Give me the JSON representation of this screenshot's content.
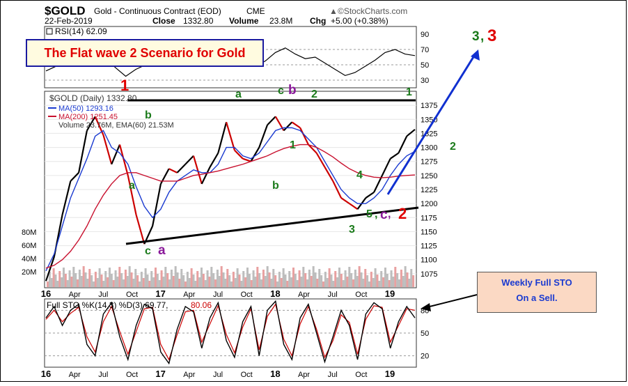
{
  "header": {
    "symbol": "$GOLD",
    "description": "Gold - Continuous Contract (EOD)",
    "exchange": "CME",
    "date": "22-Feb-2019",
    "close_label": "Close",
    "close_value": "1332.80",
    "volume_label": "Volume",
    "volume_value": "23.8M",
    "chg_label": "Chg",
    "chg_value": "+5.00 (+0.38%)",
    "watermark": "©StockCharts.com",
    "watermark_arrow": "▲"
  },
  "title_box": "The Flat wave 2 Scenario for Gold",
  "note_box": {
    "line1": "Weekly Full STO",
    "line2": "On a Sell."
  },
  "colors": {
    "up": "#000000",
    "down": "#cc0000",
    "ma50": "#1a3ad0",
    "ma200": "#c8102e",
    "wave_green": "#1a7a1a",
    "wave_red": "#e00000",
    "wave_purple": "#8a1a9a",
    "trend_blue": "#1030d0",
    "title_bg": "#fffbe0",
    "note_bg": "#fbd9c4"
  },
  "chart_data": [
    {
      "type": "line",
      "title": "RSI(14) 62.09",
      "legend_label": "RSI(14) 62.09",
      "ylim": [
        20,
        100
      ],
      "yticks": [
        "90",
        "70",
        "50",
        "30"
      ],
      "reference_lines": [
        70,
        50,
        30
      ],
      "series": [
        {
          "name": "RSI(14)",
          "values": [
            42,
            48,
            55,
            66,
            76,
            72,
            58,
            46,
            35,
            44,
            50,
            56,
            58,
            52,
            60,
            70,
            64,
            55,
            61,
            68,
            52,
            48,
            55,
            66,
            72,
            64,
            58,
            60,
            52,
            44,
            36,
            40,
            48,
            56,
            66,
            70,
            64,
            62
          ]
        }
      ]
    },
    {
      "type": "line",
      "title": "$GOLD (Daily) 1332.80",
      "legend": [
        "$GOLD (Daily) 1332.80",
        "MA(50) 1293.16",
        "MA(200) 1251.45",
        "Volume 23.76M, EMA(60) 21.53M"
      ],
      "ylim": [
        1050,
        1400
      ],
      "yticks": [
        "1375",
        "1350",
        "1325",
        "1300",
        "1275",
        "1250",
        "1225",
        "1200",
        "1175",
        "1150",
        "1125",
        "1100",
        "1075"
      ],
      "xticks": [
        "16",
        "Apr",
        "Jul",
        "Oct",
        "17",
        "Apr",
        "Jul",
        "Oct",
        "18",
        "Apr",
        "Jul",
        "Oct",
        "19"
      ],
      "volume_ticks": [
        "80M",
        "60M",
        "40M",
        "20M"
      ],
      "series": [
        {
          "name": "$GOLD",
          "values": [
            1062,
            1105,
            1180,
            1240,
            1255,
            1330,
            1355,
            1322,
            1270,
            1305,
            1250,
            1180,
            1128,
            1160,
            1235,
            1262,
            1255,
            1270,
            1285,
            1235,
            1265,
            1290,
            1345,
            1295,
            1280,
            1275,
            1300,
            1340,
            1355,
            1330,
            1345,
            1335,
            1305,
            1290,
            1265,
            1240,
            1210,
            1200,
            1190,
            1210,
            1220,
            1250,
            1280,
            1290,
            1320,
            1332
          ]
        },
        {
          "name": "MA(50)",
          "values": [
            1080,
            1110,
            1160,
            1210,
            1245,
            1280,
            1320,
            1330,
            1300,
            1290,
            1270,
            1230,
            1195,
            1175,
            1190,
            1220,
            1240,
            1250,
            1260,
            1255,
            1255,
            1270,
            1300,
            1300,
            1285,
            1280,
            1290,
            1310,
            1330,
            1335,
            1335,
            1330,
            1315,
            1300,
            1275,
            1250,
            1225,
            1210,
            1200,
            1200,
            1210,
            1225,
            1250,
            1270,
            1285,
            1293
          ]
        },
        {
          "name": "MA(200)",
          "values": [
            1085,
            1090,
            1100,
            1115,
            1135,
            1160,
            1190,
            1215,
            1235,
            1250,
            1255,
            1255,
            1250,
            1245,
            1240,
            1240,
            1240,
            1245,
            1250,
            1252,
            1255,
            1258,
            1262,
            1266,
            1270,
            1275,
            1280,
            1285,
            1292,
            1298,
            1302,
            1305,
            1305,
            1300,
            1292,
            1283,
            1272,
            1262,
            1255,
            1250,
            1247,
            1246,
            1247,
            1249,
            1250,
            1251
          ]
        }
      ],
      "wave_labels": [
        {
          "text": "1",
          "color": "red"
        },
        {
          "text": "b",
          "color": "green"
        },
        {
          "text": "a",
          "color": "green"
        },
        {
          "text": "c",
          "color": "green"
        },
        {
          "text": "a",
          "color": "purple"
        },
        {
          "text": "a",
          "color": "green"
        },
        {
          "text": "b",
          "color": "green"
        },
        {
          "text": "c",
          "color": "green"
        },
        {
          "text": "b",
          "color": "purple"
        },
        {
          "text": "2",
          "color": "green"
        },
        {
          "text": "1",
          "color": "green"
        },
        {
          "text": "4",
          "color": "green"
        },
        {
          "text": "3",
          "color": "green"
        },
        {
          "text": "5",
          "color": "green"
        },
        {
          "text": "c",
          "color": "purple"
        },
        {
          "text": "2",
          "color": "red"
        },
        {
          "text": "1",
          "color": "green"
        },
        {
          "text": "2",
          "color": "green"
        },
        {
          "text": "3",
          "color": "green"
        },
        {
          "text": "3",
          "color": "red"
        }
      ],
      "wave_separator": ",",
      "annotations": [
        "horizontal resistance line near 1375",
        "rising support line from ~1118 to ~1175",
        "blue projection arrow toward wave 3"
      ]
    },
    {
      "type": "line",
      "title": "Full STO %K(14,3) %D(3) 69.77, 80.06",
      "legend_label": "Full STO %K(14,3) %D(3) 69.77,",
      "legend_value": "80.06",
      "ylim": [
        5,
        95
      ],
      "yticks": [
        "80",
        "50",
        "20"
      ],
      "reference_lines": [
        80,
        50,
        20
      ],
      "xticks": [
        "16",
        "Apr",
        "Jul",
        "Oct",
        "17",
        "Apr",
        "Jul",
        "Oct",
        "18",
        "Apr",
        "Jul",
        "Oct",
        "19"
      ],
      "series": [
        {
          "name": "%K",
          "values": [
            70,
            85,
            60,
            80,
            88,
            35,
            20,
            75,
            90,
            45,
            15,
            60,
            88,
            82,
            25,
            10,
            55,
            85,
            78,
            30,
            70,
            90,
            40,
            18,
            65,
            85,
            20,
            80,
            92,
            35,
            15,
            70,
            88,
            50,
            12,
            45,
            80,
            60,
            15,
            75,
            90,
            82,
            30,
            65,
            85,
            70
          ]
        },
        {
          "name": "%D",
          "values": [
            68,
            80,
            65,
            76,
            84,
            45,
            25,
            65,
            85,
            52,
            22,
            52,
            82,
            84,
            35,
            15,
            48,
            78,
            80,
            38,
            62,
            86,
            48,
            24,
            58,
            82,
            28,
            72,
            88,
            42,
            20,
            62,
            85,
            55,
            18,
            40,
            74,
            64,
            22,
            68,
            86,
            84,
            38,
            60,
            82,
            80
          ]
        }
      ]
    }
  ]
}
